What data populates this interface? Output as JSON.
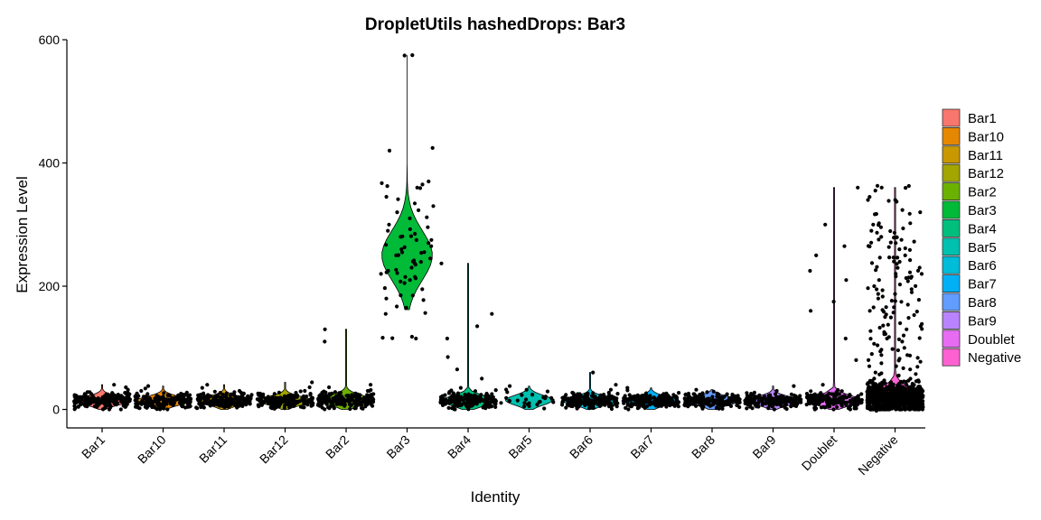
{
  "chart_data": {
    "type": "violin",
    "title": "DropletUtils hashedDrops: Bar3",
    "xlabel": "Identity",
    "ylabel": "Expression Level",
    "ylim": [
      -30,
      600
    ],
    "yticks": [
      0,
      200,
      400,
      600
    ],
    "grid": false,
    "legend_position": "right",
    "categories": [
      "Bar1",
      "Bar10",
      "Bar11",
      "Bar12",
      "Bar2",
      "Bar3",
      "Bar4",
      "Bar5",
      "Bar6",
      "Bar7",
      "Bar8",
      "Bar9",
      "Doublet",
      "Negative"
    ],
    "colors": [
      "#F8766D",
      "#E58700",
      "#C99800",
      "#A3A500",
      "#6BB100",
      "#00BA38",
      "#00BF7D",
      "#00C0AF",
      "#00BCD8",
      "#00B0F6",
      "#619CFF",
      "#B983FF",
      "#E76BF3",
      "#FD61D1"
    ],
    "series": [
      {
        "category": "Bar1",
        "center": 14,
        "spread": 7,
        "max": 40,
        "points": [
          2,
          4,
          6,
          8,
          10,
          12,
          14,
          16,
          18,
          20,
          22,
          25,
          28,
          32,
          36,
          40
        ]
      },
      {
        "category": "Bar10",
        "center": 14,
        "spread": 7,
        "max": 38,
        "points": [
          2,
          5,
          8,
          10,
          12,
          14,
          16,
          18,
          20,
          23,
          26,
          30,
          34,
          38
        ]
      },
      {
        "category": "Bar11",
        "center": 14,
        "spread": 7,
        "max": 40,
        "points": [
          2,
          5,
          8,
          10,
          12,
          14,
          16,
          18,
          20,
          23,
          26,
          30,
          35,
          40
        ]
      },
      {
        "category": "Bar12",
        "center": 14,
        "spread": 7,
        "max": 44,
        "points": [
          2,
          5,
          8,
          10,
          12,
          14,
          16,
          18,
          20,
          23,
          26,
          30,
          36,
          44
        ]
      },
      {
        "category": "Bar2",
        "center": 15,
        "spread": 8,
        "max": 130,
        "points": [
          2,
          5,
          8,
          12,
          16,
          20,
          25,
          30,
          36,
          40,
          110,
          130
        ]
      },
      {
        "category": "Bar3",
        "center": 250,
        "spread": 40,
        "max": 575,
        "points": [
          115,
          118,
          155,
          165,
          180,
          185,
          195,
          205,
          210,
          215,
          220,
          225,
          230,
          235,
          240,
          245,
          250,
          255,
          260,
          265,
          270,
          275,
          280,
          285,
          290,
          300,
          310,
          320,
          330,
          345,
          360,
          365,
          370,
          420,
          575
        ]
      },
      {
        "category": "Bar4",
        "center": 14,
        "spread": 8,
        "max": 237,
        "points": [
          2,
          5,
          8,
          12,
          16,
          20,
          25,
          35,
          50,
          65,
          85,
          115,
          135,
          155,
          237
        ]
      },
      {
        "category": "Bar5",
        "center": 15,
        "spread": 8,
        "max": 38,
        "points": [
          5,
          8,
          12,
          15,
          18,
          21,
          24,
          28,
          32,
          38
        ]
      },
      {
        "category": "Bar6",
        "center": 14,
        "spread": 7,
        "max": 60,
        "points": [
          2,
          5,
          8,
          12,
          16,
          20,
          25,
          32,
          40,
          60
        ]
      },
      {
        "category": "Bar7",
        "center": 14,
        "spread": 7,
        "max": 35,
        "points": [
          2,
          5,
          8,
          10,
          12,
          14,
          16,
          18,
          20,
          23,
          27,
          31,
          35
        ]
      },
      {
        "category": "Bar8",
        "center": 14,
        "spread": 7,
        "max": 32,
        "points": [
          2,
          5,
          8,
          10,
          12,
          14,
          16,
          18,
          21,
          25,
          28,
          32
        ]
      },
      {
        "category": "Bar9",
        "center": 14,
        "spread": 7,
        "max": 38,
        "points": [
          2,
          5,
          8,
          10,
          12,
          14,
          16,
          18,
          21,
          25,
          30,
          38
        ]
      },
      {
        "category": "Doublet",
        "center": 15,
        "spread": 8,
        "max": 360,
        "points": [
          2,
          5,
          8,
          12,
          16,
          20,
          25,
          40,
          80,
          115,
          160,
          175,
          210,
          225,
          250,
          265,
          300,
          360
        ]
      },
      {
        "category": "Negative",
        "center": 20,
        "spread": 14,
        "max": 360,
        "points": [
          2,
          5,
          10,
          15,
          20,
          30,
          40,
          50,
          60,
          70,
          80,
          90,
          100,
          110,
          120,
          130,
          140,
          150,
          160,
          170,
          180,
          190,
          200,
          210,
          220,
          230,
          240,
          250,
          260,
          270,
          280,
          290,
          300,
          320,
          340,
          360
        ]
      }
    ]
  }
}
